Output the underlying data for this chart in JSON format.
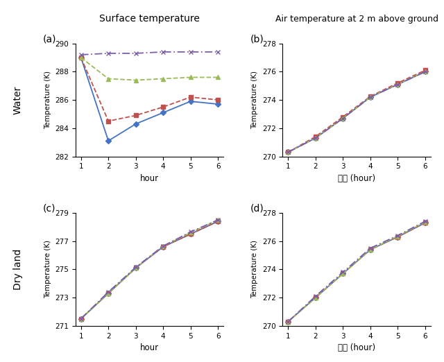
{
  "hours": [
    1,
    2,
    3,
    4,
    5,
    6
  ],
  "panel_a": {
    "blue_solid": [
      289.0,
      283.1,
      284.3,
      285.1,
      285.9,
      285.7
    ],
    "red_dashed": [
      289.0,
      284.5,
      284.9,
      285.5,
      286.2,
      286.0
    ],
    "green_dotted": [
      289.0,
      287.5,
      287.4,
      287.5,
      287.6,
      287.6
    ],
    "purple_dashdot": [
      289.2,
      289.3,
      289.3,
      289.4,
      289.4,
      289.4
    ],
    "ylim": [
      282,
      290
    ],
    "yticks": [
      282,
      284,
      286,
      288,
      290
    ],
    "ylabel": "Temperature (K)",
    "xlabel": "hour",
    "label": "(a)"
  },
  "panel_b": {
    "blue_solid": [
      270.3,
      271.3,
      272.7,
      274.2,
      275.1,
      276.0
    ],
    "red_dashed": [
      270.3,
      271.4,
      272.8,
      274.25,
      275.2,
      276.1
    ],
    "green_dotted": [
      270.3,
      271.3,
      272.7,
      274.2,
      275.1,
      276.0
    ],
    "purple_dashdot": [
      270.3,
      271.3,
      272.7,
      274.2,
      275.1,
      276.0
    ],
    "ylim": [
      270,
      278
    ],
    "yticks": [
      270,
      272,
      274,
      276,
      278
    ],
    "ylabel": "Temperature (K)",
    "xlabel": "시간 (hour)",
    "label": "(b)"
  },
  "panel_c": {
    "blue_solid": [
      271.5,
      273.3,
      275.1,
      276.6,
      277.5,
      278.4
    ],
    "red_dashed": [
      271.5,
      273.3,
      275.1,
      276.6,
      277.5,
      278.4
    ],
    "green_dotted": [
      271.5,
      273.3,
      275.1,
      276.65,
      277.6,
      278.5
    ],
    "purple_dashdot": [
      271.5,
      273.4,
      275.15,
      276.65,
      277.65,
      278.5
    ],
    "ylim": [
      271,
      279
    ],
    "yticks": [
      271,
      273,
      275,
      277,
      279
    ],
    "ylabel": "Temperature (K)",
    "xlabel": "hour",
    "label": "(c)"
  },
  "panel_d": {
    "blue_solid": [
      270.3,
      272.0,
      273.7,
      275.4,
      276.3,
      277.3
    ],
    "red_dashed": [
      270.3,
      272.0,
      273.7,
      275.4,
      276.3,
      277.3
    ],
    "green_dotted": [
      270.3,
      272.0,
      273.7,
      275.4,
      276.35,
      277.35
    ],
    "purple_dashdot": [
      270.3,
      272.1,
      273.8,
      275.5,
      276.4,
      277.4
    ],
    "ylim": [
      270,
      278
    ],
    "yticks": [
      270,
      272,
      274,
      276,
      278
    ],
    "ylabel": "Temperature (K)",
    "xlabel": "시간 (hour)",
    "label": "(d)"
  },
  "colors": {
    "blue": "#4472C4",
    "red": "#C0504D",
    "green": "#9BBB59",
    "purple": "#7B5EA7"
  },
  "title_left": "Surface temperature",
  "title_right": "Air temperature at 2 m above ground",
  "water_label": "Water",
  "dryland_label": "Dry land"
}
